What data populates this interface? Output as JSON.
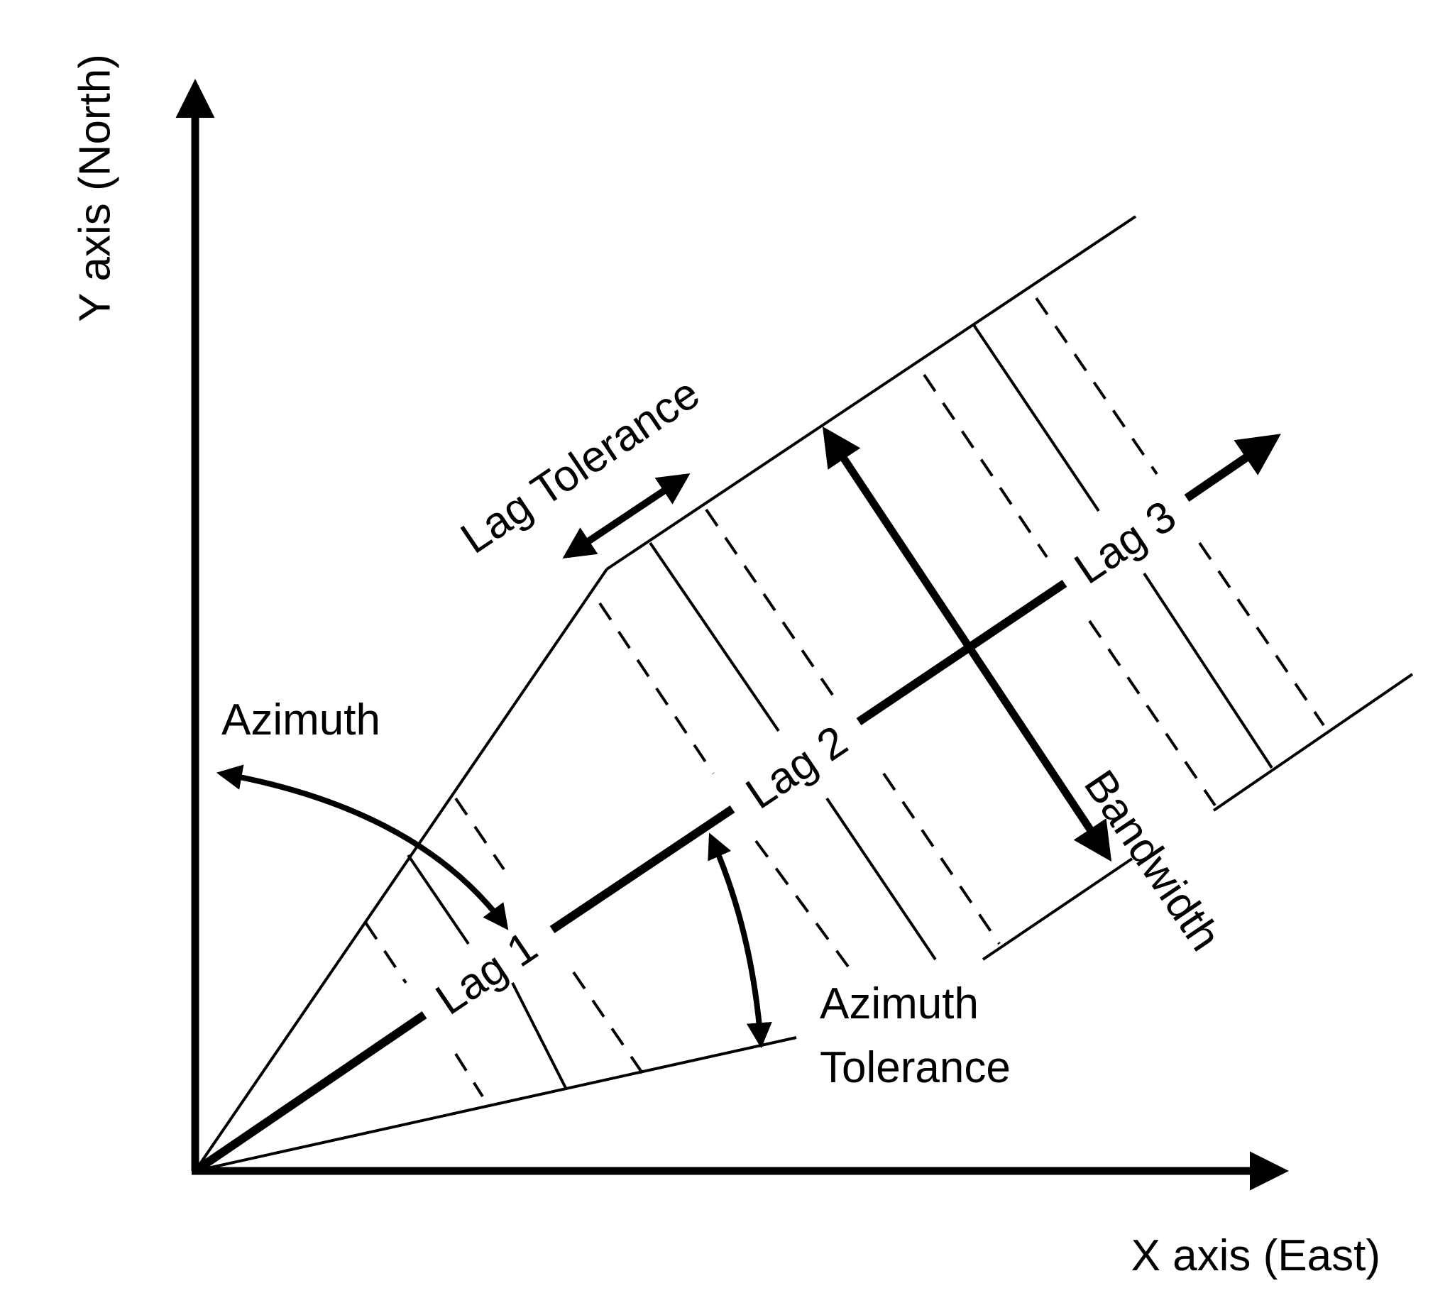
{
  "labels": {
    "y_axis": "Y axis (North)",
    "x_axis": "X axis (East)",
    "azimuth": "Azimuth",
    "azimuth_tolerance_line1": "Azimuth",
    "azimuth_tolerance_line2": "Tolerance",
    "lag_tolerance": "Lag Tolerance",
    "bandwidth": "Bandwidth",
    "lag1": "Lag 1",
    "lag2": "Lag 2",
    "lag3": "Lag 3"
  },
  "colors": {
    "ink": "#000000",
    "background": "#ffffff"
  }
}
